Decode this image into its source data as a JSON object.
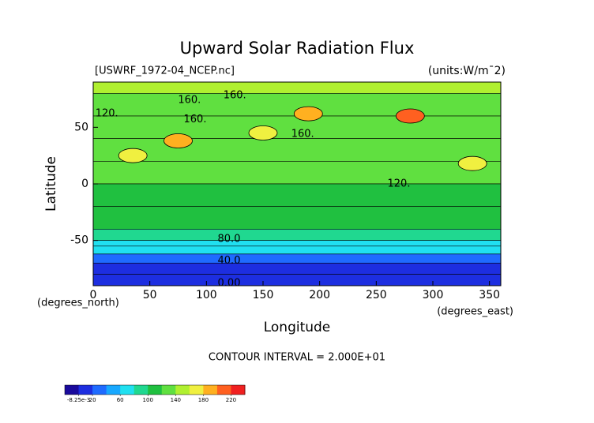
{
  "chart_data": {
    "type": "contour",
    "title": "Upward Solar Radiation Flux",
    "source": "[USWRF_1972-04_NCEP.nc]",
    "units": "(units:W/m¯2)",
    "x_label": "Longitude",
    "y_label": "Latitude",
    "x_unit": "(degrees_east)",
    "y_unit": "(degrees_north)",
    "footnote": "CONTOUR INTERVAL = 2.000E+01",
    "xlim": [
      0,
      360
    ],
    "ylim": [
      -90,
      90
    ],
    "xticks": [
      0,
      50,
      100,
      150,
      200,
      250,
      300,
      350
    ],
    "yticks": [
      -50,
      0,
      50
    ],
    "bands": {
      "lat_edges": [
        90,
        80,
        60,
        40,
        20,
        0,
        -20,
        -40,
        -50,
        -55,
        -62,
        -70,
        -80,
        -90
      ],
      "values": [
        150,
        130,
        125,
        135,
        135,
        115,
        110,
        90,
        75,
        60,
        30,
        10,
        5
      ]
    },
    "peaks": {
      "lon": [
        280,
        75,
        190,
        35,
        335,
        150
      ],
      "lat": [
        60,
        38,
        62,
        25,
        18,
        45
      ],
      "values": [
        200,
        190,
        180,
        170,
        170,
        160
      ]
    },
    "contour_labels": {
      "lon": [
        85,
        125,
        90,
        12,
        185,
        270,
        120,
        120,
        120
      ],
      "lat": [
        74,
        78,
        57,
        62,
        44,
        0,
        -49,
        -68,
        -88
      ],
      "labels": [
        "160.",
        "160.",
        "160.",
        "120.",
        "160.",
        "120.",
        "80.0",
        "40.0",
        "0.00"
      ]
    },
    "colorbar": {
      "clim": [
        -20,
        240
      ],
      "colors": [
        "#1a0a9c",
        "#1d2ee0",
        "#1f6bff",
        "#18a8ff",
        "#20e0f0",
        "#20d890",
        "#20c040",
        "#60e040",
        "#b0f030",
        "#f0f040",
        "#ffb020",
        "#ff6020",
        "#f02020"
      ],
      "ticks": [
        {
          "value": -0.00825,
          "label": "-8.25e-3"
        },
        20,
        60,
        100,
        140,
        180,
        220
      ]
    }
  }
}
